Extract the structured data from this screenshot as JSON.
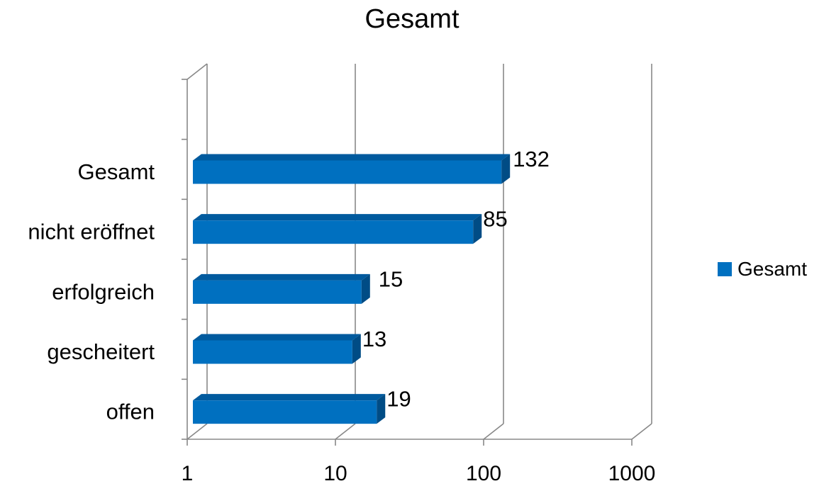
{
  "chart_data": {
    "type": "bar",
    "orientation": "horizontal",
    "title": "Gesamt",
    "categories": [
      "Gesamt",
      "nicht eröffnet",
      "erfolgreich",
      "gescheitert",
      "offen"
    ],
    "series": [
      {
        "name": "Gesamt",
        "values": [
          132,
          85,
          15,
          13,
          19
        ]
      }
    ],
    "x_scale": "log",
    "x_ticks": [
      "1",
      "10",
      "100",
      "1000"
    ],
    "xlim": [
      1,
      1000
    ],
    "grid": true,
    "legend_position": "right",
    "data_labels": [
      "132",
      "85",
      "15",
      "13",
      "19"
    ],
    "colors": {
      "bar": "#0070C0",
      "bar_side": "#004C85",
      "bar_top": "#005A9E",
      "grid": "#888888"
    }
  }
}
